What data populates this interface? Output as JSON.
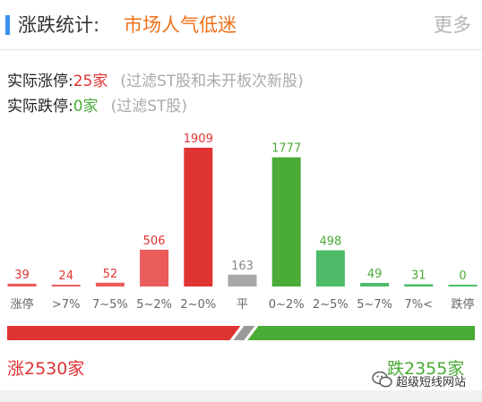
{
  "header": {
    "title": "涨跌统计:",
    "subtitle": "市场人气低迷",
    "more": "更多"
  },
  "summary": {
    "limit_up_label": "实际涨停:",
    "limit_up_value": "25家",
    "limit_up_note": "(过滤ST股和未开板次新股)",
    "limit_down_label": "实际跌停:",
    "limit_down_value": "0家",
    "limit_down_note": "(过滤ST股)"
  },
  "colors": {
    "up": "#e03333",
    "up_light": "#ea5b5b",
    "flat": "#a8a8a8",
    "down": "#4aab36",
    "down_light": "#4ebb68"
  },
  "chart_data": {
    "type": "bar",
    "categories": [
      "涨停",
      ">7%",
      "7~5%",
      "5~2%",
      "2~0%",
      "平",
      "0~2%",
      "2~5%",
      "5~7%",
      "7%<",
      "跌停"
    ],
    "values": [
      39,
      24,
      52,
      506,
      1909,
      163,
      1777,
      498,
      49,
      31,
      0
    ],
    "ylim": [
      0,
      1909
    ]
  },
  "totals": {
    "up": "涨2530家",
    "down": "跌2355家",
    "ratio_up": 0.518
  },
  "watermark": {
    "text": "超级短线网站",
    "icon": "wechat-icon"
  }
}
